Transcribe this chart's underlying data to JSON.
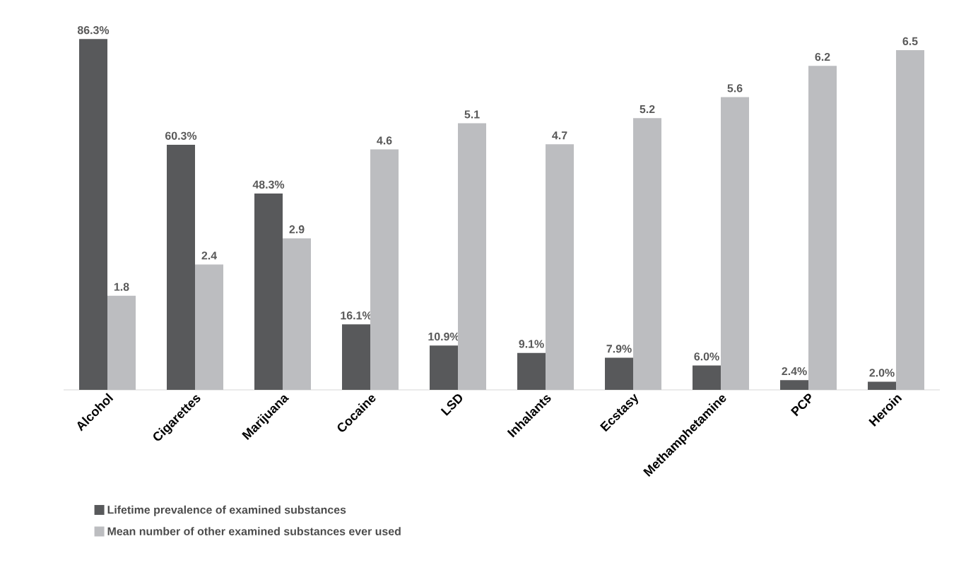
{
  "chart_data": {
    "type": "bar",
    "categories": [
      "Alcohol",
      "Cigarettes",
      "Marijuana",
      "Cocaine",
      "LSD",
      "Inhalants",
      "Ecstasy",
      "Methamphetamine",
      "PCP",
      "Heroin"
    ],
    "series": [
      {
        "name": "Lifetime prevalence of examined substances",
        "color": "#58595b",
        "values": [
          86.3,
          60.3,
          48.3,
          16.1,
          10.9,
          9.1,
          7.9,
          6.0,
          2.4,
          2.0
        ],
        "value_labels": [
          "86.3%",
          "60.3%",
          "48.3%",
          "16.1%",
          "10.9%",
          "9.1%",
          "7.9%",
          "6.0%",
          "2.4%",
          "2.0%"
        ]
      },
      {
        "name": "Mean number of other examined substances ever used",
        "color": "#bcbdc0",
        "axis": "y2",
        "values": [
          1.8,
          2.4,
          2.9,
          4.6,
          5.1,
          4.7,
          5.2,
          5.6,
          6.2,
          6.5
        ],
        "value_labels": [
          "1.8",
          "2.4",
          "2.9",
          "4.6",
          "5.1",
          "4.7",
          "5.2",
          "5.6",
          "6.2",
          "6.5"
        ]
      }
    ],
    "legend": "bottom",
    "tick_labels": "x"
  }
}
